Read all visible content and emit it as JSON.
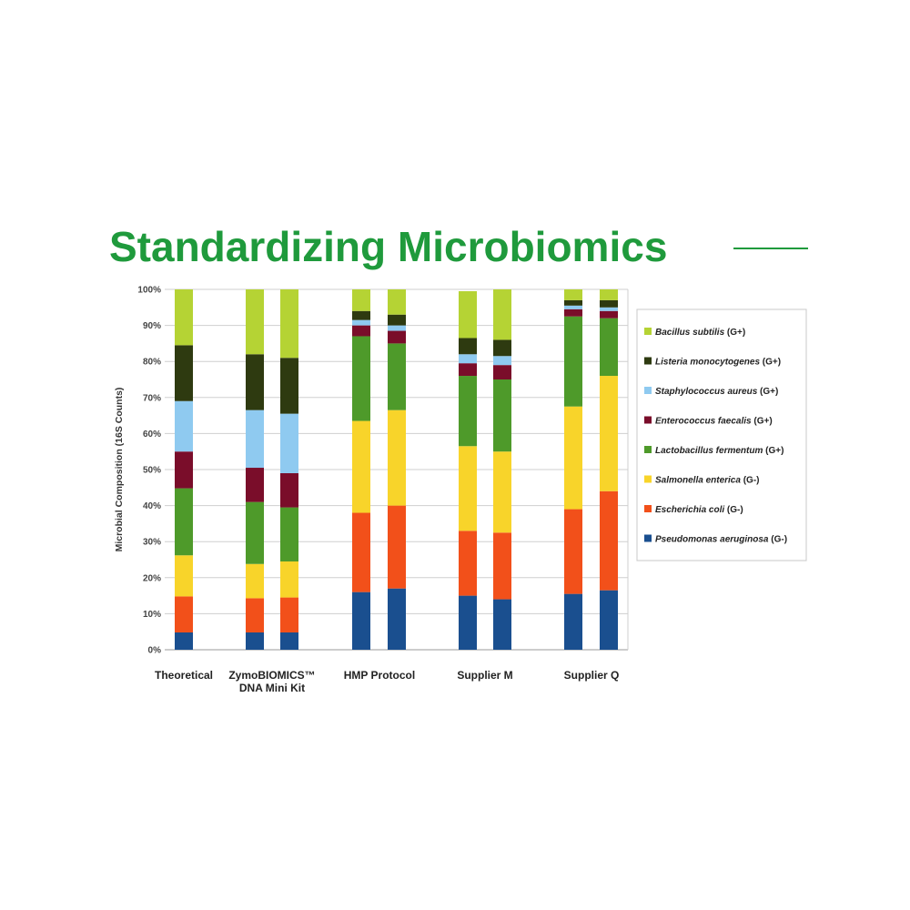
{
  "page": {
    "title": "Standardizing Microbiomics",
    "title_color": "#1f9a3c"
  },
  "chart_data": {
    "type": "bar",
    "stacked": true,
    "ylabel": "Microbial Composition (16S Counts)",
    "ylim": [
      0,
      100
    ],
    "yticks": [
      "0%",
      "10%",
      "20%",
      "30%",
      "40%",
      "50%",
      "60%",
      "70%",
      "80%",
      "90%",
      "100%"
    ],
    "grid": true,
    "legend_position": "right",
    "groups": [
      {
        "label_lines": [
          "Theoretical"
        ],
        "bars": 1
      },
      {
        "label_lines": [
          "ZymoBIOMICS™",
          "DNA Mini Kit"
        ],
        "bars": 2
      },
      {
        "label_lines": [
          "HMP Protocol"
        ],
        "bars": 2
      },
      {
        "label_lines": [
          "Supplier M"
        ],
        "bars": 2
      },
      {
        "label_lines": [
          "Supplier Q"
        ],
        "bars": 2
      }
    ],
    "series": [
      {
        "name": "Pseudomonas aeruginosa",
        "suffix": "(G-)",
        "color": "#1a4f8f",
        "values": [
          4.8,
          4.8,
          4.8,
          16,
          17,
          15,
          14,
          15.5,
          16.5
        ]
      },
      {
        "name": "Escherichia coli",
        "suffix": "(G-)",
        "color": "#f2501a",
        "values": [
          10,
          9.5,
          9.7,
          22,
          23,
          18,
          18.5,
          23.5,
          27.5
        ]
      },
      {
        "name": "Salmonella enterica",
        "suffix": "(G-)",
        "color": "#f8d42a",
        "values": [
          11.4,
          9.5,
          10,
          25.5,
          26.5,
          23.5,
          22.5,
          28.5,
          32
        ]
      },
      {
        "name": "Lactobacillus fermentum",
        "suffix": "(G+)",
        "color": "#4e9a2a",
        "values": [
          18.6,
          17.2,
          15,
          23.5,
          18.5,
          19.5,
          20,
          25,
          16
        ]
      },
      {
        "name": "Enterococcus faecalis",
        "suffix": "(G+)",
        "color": "#7a0d2a",
        "values": [
          10.2,
          9.5,
          9.5,
          3,
          3.5,
          3.5,
          4,
          2,
          2
        ]
      },
      {
        "name": "Staphylococcus aureus",
        "suffix": "(G+)",
        "color": "#8fcaf0",
        "values": [
          14,
          16,
          16.5,
          1.5,
          1.5,
          2.5,
          2.5,
          1,
          1
        ]
      },
      {
        "name": "Listeria monocytogenes",
        "suffix": "(G+)",
        "color": "#2e3a10",
        "values": [
          15.5,
          15.5,
          15.5,
          2.5,
          3,
          4.5,
          4.5,
          1.5,
          2
        ]
      },
      {
        "name": "Bacillus subtilis",
        "suffix": "(G+)",
        "color": "#b5d334",
        "values": [
          15.5,
          18,
          19,
          6,
          7,
          13,
          14,
          3,
          3
        ]
      }
    ]
  }
}
